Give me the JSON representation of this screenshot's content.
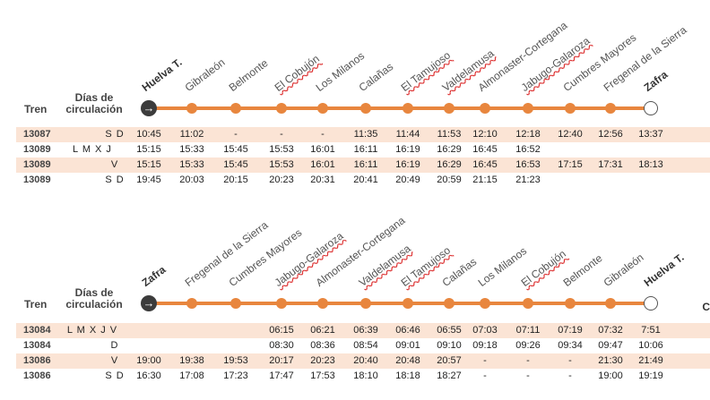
{
  "headers": {
    "train": "Tren",
    "days": "Días de circulación"
  },
  "sections": [
    {
      "stations": [
        {
          "name": "Huelva T.",
          "bold": true
        },
        {
          "name": "Gibraleón"
        },
        {
          "name": "Belmonte"
        },
        {
          "name": "El Cobujón",
          "squiggle": true
        },
        {
          "name": "Los Milanos"
        },
        {
          "name": "Calañas"
        },
        {
          "name": "El Tamujoso",
          "squiggle": true
        },
        {
          "name": "Valdelamusa",
          "squiggle": true
        },
        {
          "name": "Almonaster-Cortegana"
        },
        {
          "name": "Jabugo-Galaroza",
          "squiggle": true
        },
        {
          "name": "Cumbres Mayores"
        },
        {
          "name": "Fregenal de la Sierra"
        },
        {
          "name": "Zafra",
          "bold": true
        }
      ],
      "rows": [
        {
          "train": "13087",
          "days": "S D",
          "times": [
            "10:45",
            "11:02",
            "-",
            "-",
            "-",
            "11:35",
            "11:44",
            "11:53",
            "12:10",
            "12:18",
            "12:40",
            "12:56",
            "13:37"
          ]
        },
        {
          "train": "13089",
          "days": "L M X J",
          "times": [
            "15:15",
            "15:33",
            "15:45",
            "15:53",
            "16:01",
            "16:11",
            "16:19",
            "16:29",
            "16:45",
            "16:52",
            "",
            "",
            ""
          ]
        },
        {
          "train": "13089",
          "days": "V",
          "times": [
            "15:15",
            "15:33",
            "15:45",
            "15:53",
            "16:01",
            "16:11",
            "16:19",
            "16:29",
            "16:45",
            "16:53",
            "17:15",
            "17:31",
            "18:13"
          ]
        },
        {
          "train": "13089",
          "days": "S D",
          "times": [
            "19:45",
            "20:03",
            "20:15",
            "20:23",
            "20:31",
            "20:41",
            "20:49",
            "20:59",
            "21:15",
            "21:23",
            "",
            "",
            ""
          ]
        }
      ]
    },
    {
      "stations": [
        {
          "name": "Zafra",
          "bold": true
        },
        {
          "name": "Fregenal de la Sierra"
        },
        {
          "name": "Cumbres Mayores"
        },
        {
          "name": "Jabugo-Galaroza",
          "squiggle": true
        },
        {
          "name": "Almonaster-Cortegana"
        },
        {
          "name": "Valdelamusa",
          "squiggle": true
        },
        {
          "name": "El Tamujoso",
          "squiggle": true
        },
        {
          "name": "Calañas"
        },
        {
          "name": "Los Milanos"
        },
        {
          "name": "El Cobujón",
          "squiggle": true
        },
        {
          "name": "Belmonte"
        },
        {
          "name": "Gibraleón"
        },
        {
          "name": "Huelva T.",
          "bold": true
        }
      ],
      "rows": [
        {
          "train": "13084",
          "days": "L M X J V",
          "times": [
            "",
            "",
            "",
            "06:15",
            "06:21",
            "06:39",
            "06:46",
            "06:55",
            "07:03",
            "07:11",
            "07:19",
            "07:32",
            "7:51"
          ]
        },
        {
          "train": "13084",
          "days": "D",
          "times": [
            "",
            "",
            "",
            "08:30",
            "08:36",
            "08:54",
            "09:01",
            "09:10",
            "09:18",
            "09:26",
            "09:34",
            "09:47",
            "10:06"
          ]
        },
        {
          "train": "13086",
          "days": "V",
          "times": [
            "19:00",
            "19:38",
            "19:53",
            "20:17",
            "20:23",
            "20:40",
            "20:48",
            "20:57",
            "-",
            "-",
            "-",
            "21:30",
            "21:49"
          ]
        },
        {
          "train": "13086",
          "days": "S D",
          "times": [
            "16:30",
            "17:08",
            "17:23",
            "17:47",
            "17:53",
            "18:10",
            "18:18",
            "18:27",
            "-",
            "-",
            "-",
            "19:00",
            "19:19"
          ]
        }
      ]
    }
  ],
  "cutoff_text": "C"
}
